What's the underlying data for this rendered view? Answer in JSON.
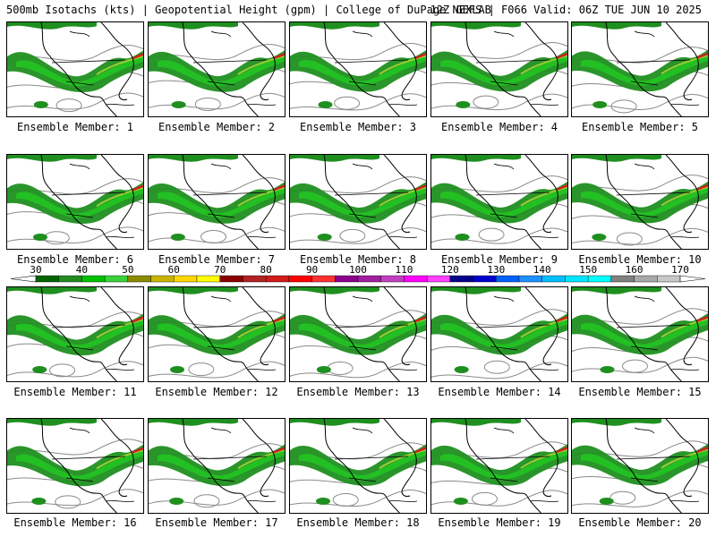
{
  "header": {
    "left_text": "500mb Isotachs (kts) | Geopotential Height (gpm) | College of DuPage NEXLAB",
    "right_text": "12Z GEFS | F066 Valid: 06Z TUE JUN 10 2025"
  },
  "members": [
    "Ensemble Member: 1",
    "Ensemble Member: 2",
    "Ensemble Member: 3",
    "Ensemble Member: 4",
    "Ensemble Member: 5",
    "Ensemble Member: 6",
    "Ensemble Member: 7",
    "Ensemble Member: 8",
    "Ensemble Member: 9",
    "Ensemble Member: 10",
    "Ensemble Member: 11",
    "Ensemble Member: 12",
    "Ensemble Member: 13",
    "Ensemble Member: 14",
    "Ensemble Member: 15",
    "Ensemble Member: 16",
    "Ensemble Member: 17",
    "Ensemble Member: 18",
    "Ensemble Member: 19",
    "Ensemble Member: 20"
  ],
  "colorbar": {
    "ticks": [
      "30",
      "40",
      "50",
      "60",
      "70",
      "80",
      "90",
      "100",
      "110",
      "120",
      "130",
      "140",
      "150",
      "160",
      "170"
    ],
    "colors": [
      "#006400",
      "#228b22",
      "#00c000",
      "#3ad13a",
      "#8b8b00",
      "#c8b400",
      "#ffd700",
      "#ffff00",
      "#8b0000",
      "#b22222",
      "#d11a1a",
      "#ff0000",
      "#ff3030",
      "#8b008b",
      "#a020a0",
      "#c040c0",
      "#ff00ff",
      "#ff40ff",
      "#00008b",
      "#0000cd",
      "#0060ff",
      "#1e90ff",
      "#00bfff",
      "#00e5ff",
      "#00ffff",
      "#808080",
      "#a9a9a9",
      "#c8c8c8"
    ]
  },
  "colors": {
    "jet_low": "#1f8f1f",
    "jet_mid": "#22c022",
    "jet_high": "#9acd32",
    "jet_core": "#d02020",
    "height_contour": "#8a8a8a",
    "coastline": "#000000"
  }
}
